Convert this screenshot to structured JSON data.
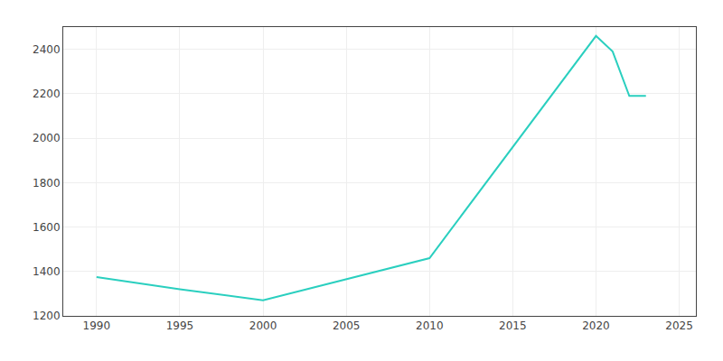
{
  "chart_data": {
    "type": "line",
    "x": [
      1990,
      1995,
      2000,
      2010,
      2020,
      2021,
      2022,
      2023
    ],
    "values": [
      1375,
      1320,
      1270,
      1460,
      2460,
      2390,
      2190,
      2190
    ],
    "color": "#2acfbf",
    "xlim": [
      1988,
      2026
    ],
    "ylim": [
      1200,
      2500
    ],
    "xticks": [
      1990,
      1995,
      2000,
      2005,
      2010,
      2015,
      2020,
      2025
    ],
    "yticks": [
      1200,
      1400,
      1600,
      1800,
      2000,
      2200,
      2400
    ],
    "grid": true
  }
}
